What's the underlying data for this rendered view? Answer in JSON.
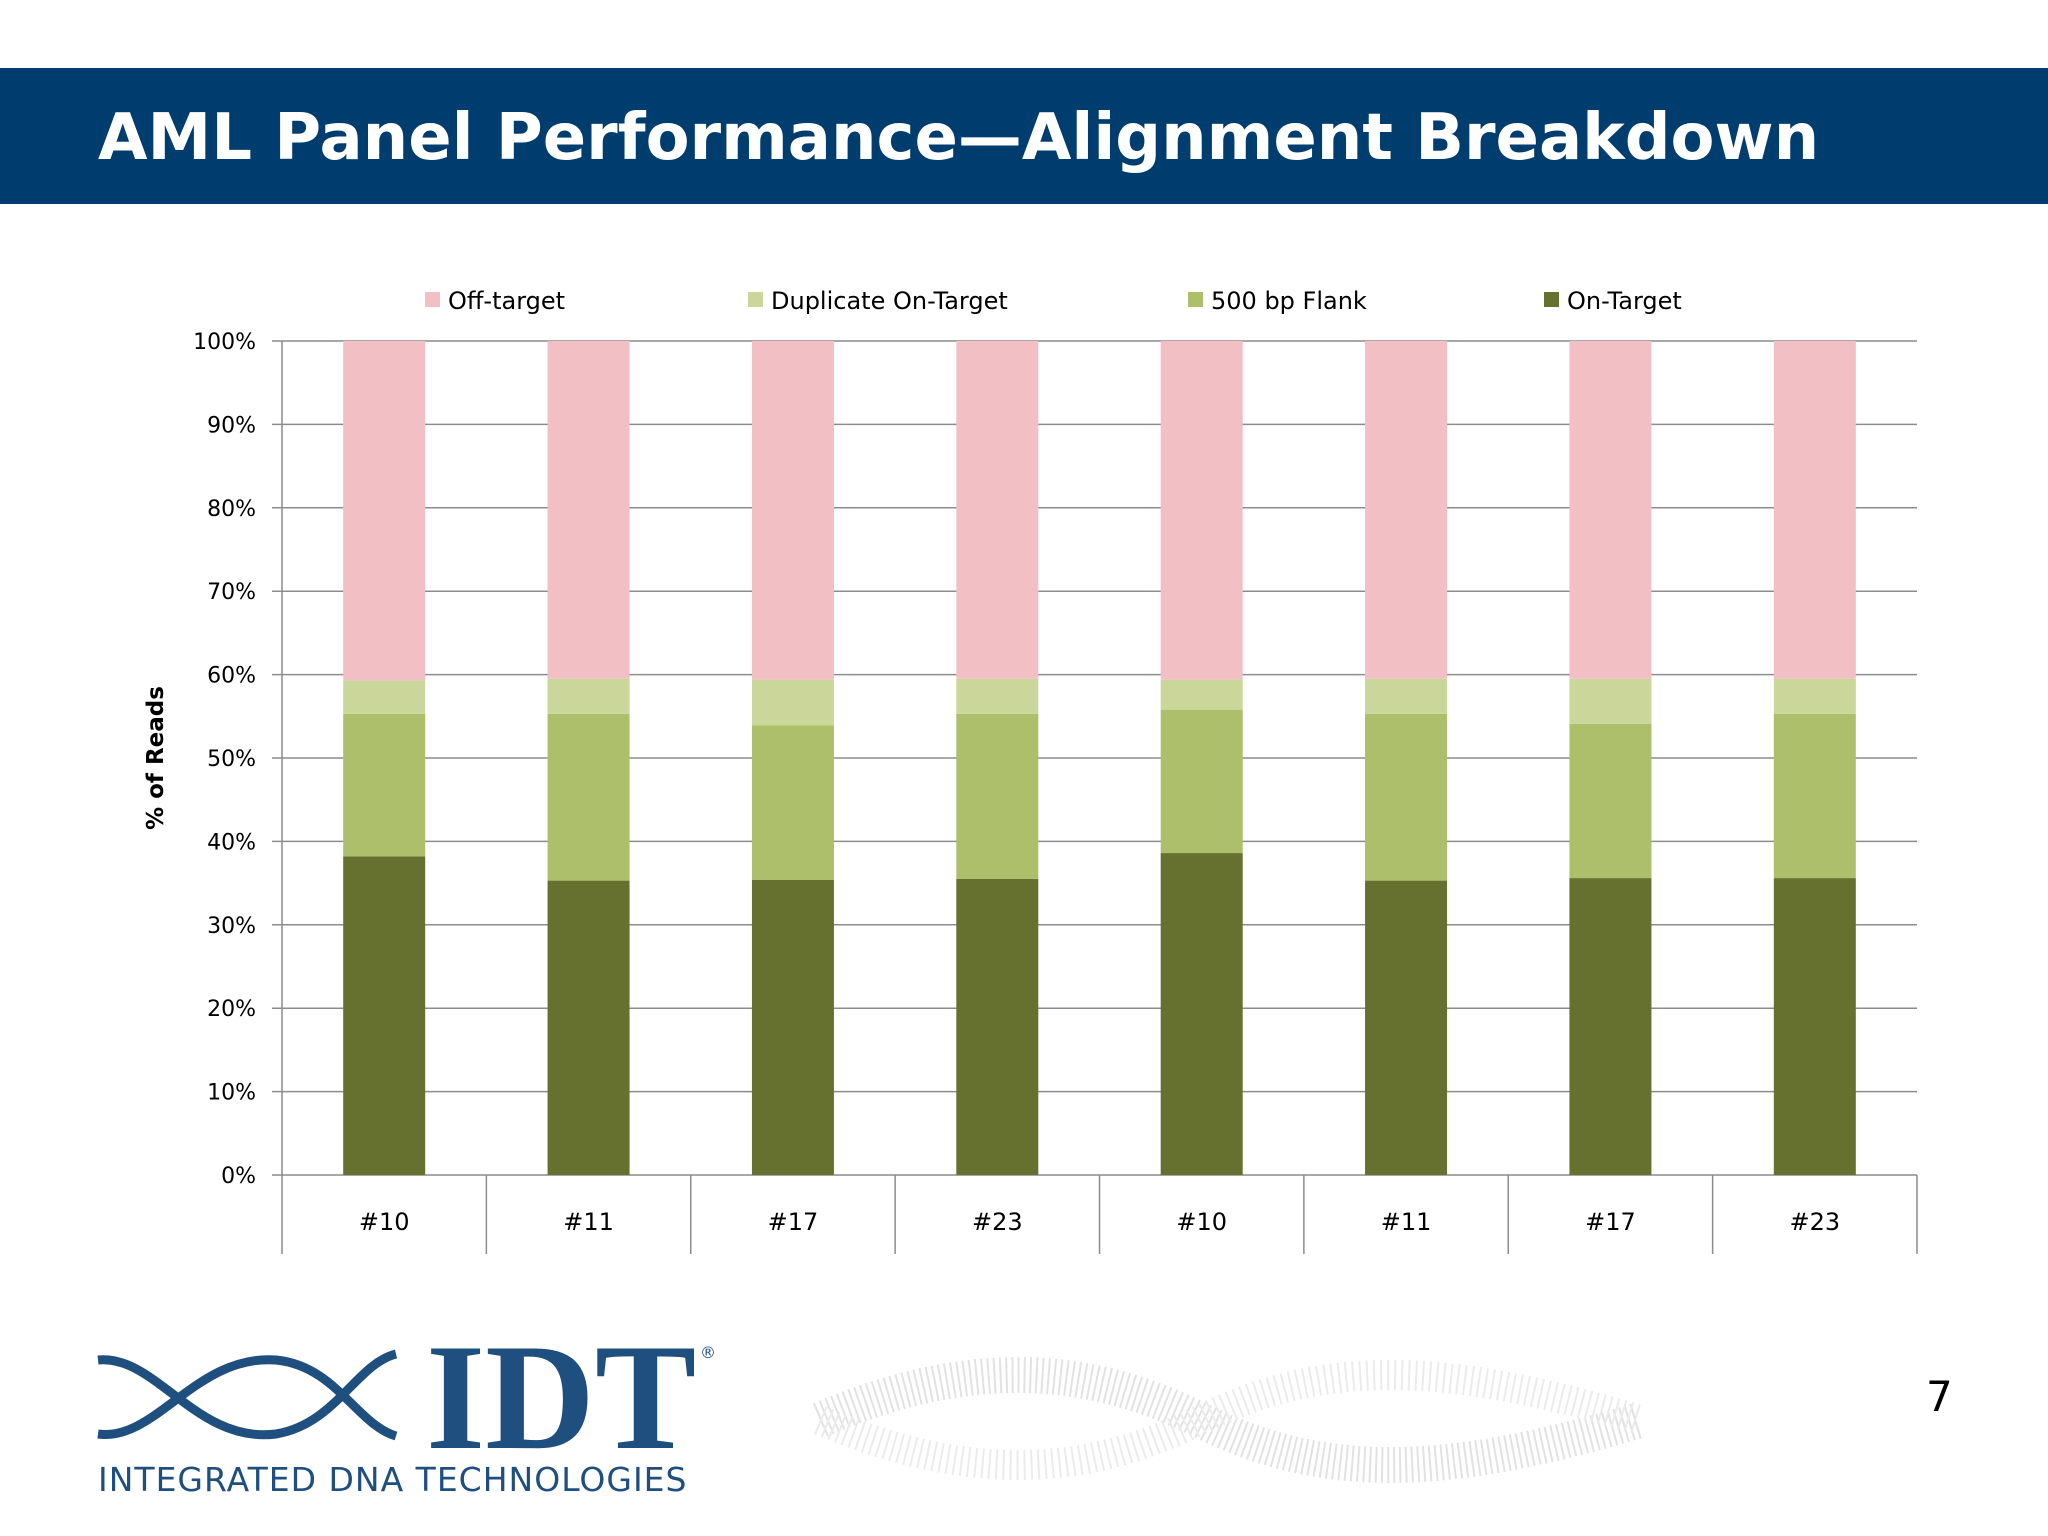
{
  "header": {
    "title": "AML Panel Performance—Alignment Breakdown"
  },
  "footer": {
    "logo_text": "IDT",
    "logo_registered": "®",
    "logo_subtitle": "INTEGRATED DNA TECHNOLOGIES",
    "page_number": "7"
  },
  "chart_data": {
    "type": "bar",
    "stacked": true,
    "title": "",
    "xlabel": "",
    "ylabel": "% of Reads",
    "ylim": [
      0,
      100
    ],
    "yticks": [
      "0%",
      "10%",
      "20%",
      "30%",
      "40%",
      "50%",
      "60%",
      "70%",
      "80%",
      "90%",
      "100%"
    ],
    "categories": [
      "#10",
      "#11",
      "#17",
      "#23",
      "#10",
      "#11",
      "#17",
      "#23"
    ],
    "grid": true,
    "legend_position": "top",
    "series": [
      {
        "name": "On-Target",
        "color": "#66702f",
        "values": [
          38.2,
          35.3,
          35.4,
          35.5,
          38.6,
          35.3,
          35.6,
          35.6
        ]
      },
      {
        "name": "500 bp Flank",
        "color": "#adbf6a",
        "values": [
          17.1,
          20.0,
          18.5,
          19.8,
          17.2,
          20.0,
          18.5,
          19.7
        ]
      },
      {
        "name": "Duplicate On-Target",
        "color": "#cad69a",
        "values": [
          4.0,
          4.2,
          5.5,
          4.2,
          3.6,
          4.2,
          5.4,
          4.2
        ]
      },
      {
        "name": "Off-target",
        "color": "#f2bfc4",
        "values": [
          40.7,
          40.5,
          40.6,
          40.5,
          40.6,
          40.5,
          40.5,
          40.5
        ]
      }
    ],
    "legend_order": [
      "Off-target",
      "Duplicate On-Target",
      "500 bp Flank",
      "On-Target"
    ]
  }
}
